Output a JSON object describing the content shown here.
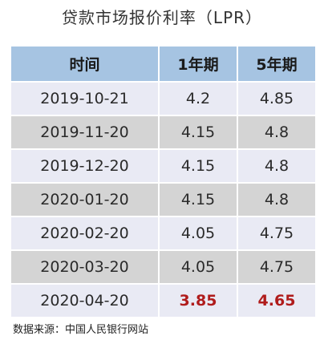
{
  "title": "贷款市场报价利率（LPR）",
  "table": {
    "headers": [
      "时间",
      "1年期",
      "5年期"
    ],
    "rows": [
      {
        "date": "2019-10-21",
        "one_year": "4.2",
        "five_year": "4.85"
      },
      {
        "date": "2019-11-20",
        "one_year": "4.15",
        "five_year": "4.8"
      },
      {
        "date": "2019-12-20",
        "one_year": "4.15",
        "five_year": "4.8"
      },
      {
        "date": "2020-01-20",
        "one_year": "4.15",
        "five_year": "4.8"
      },
      {
        "date": "2020-02-20",
        "one_year": "4.05",
        "five_year": "4.75"
      },
      {
        "date": "2020-03-20",
        "one_year": "4.05",
        "five_year": "4.75"
      },
      {
        "date": "2020-04-20",
        "one_year": "3.85",
        "five_year": "4.65"
      }
    ]
  },
  "source": "数据来源：中国人民银行网站",
  "colors": {
    "header_bg": "#a6c4e2",
    "row_light_bg": "#e9eaf4",
    "row_dark_bg": "#d4d4d4",
    "highlight_text": "#b01c1c"
  }
}
